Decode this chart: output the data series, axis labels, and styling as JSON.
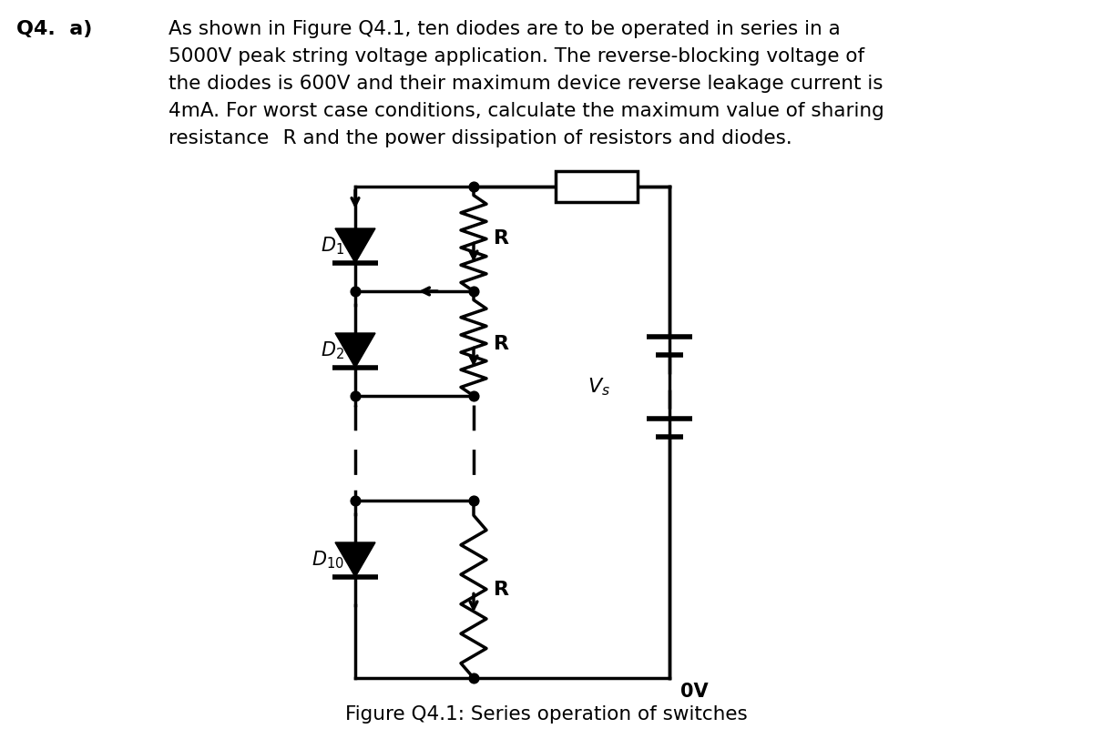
{
  "title_text": "Q4.  a)",
  "paragraph": "As shown in Figure Q4.1, ten diodes are to be operated in series in a\n5000V peak string voltage application. The reverse-blocking voltage of\nthe diodes is 600V and their maximum device reverse leakage current is\n4mA. For worst case conditions, calculate the maximum value of sharing\nresistance R and the power dissipation of resistors and diodes.",
  "caption": "Figure Q4.1: Series operation of switches",
  "bg_color": "#ffffff",
  "text_color": "#000000"
}
